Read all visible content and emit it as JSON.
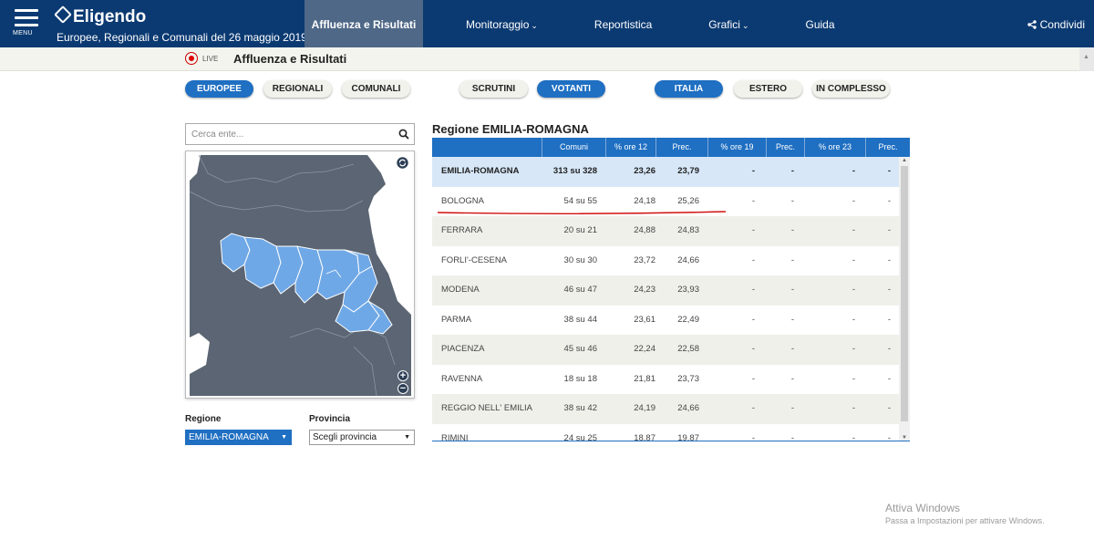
{
  "header": {
    "menu_label": "MENU",
    "logo": "Eligendo",
    "subtitle": "Europee, Regionali e Comunali del 26 maggio 2019",
    "nav": [
      {
        "label": "Affluenza e Risultati",
        "chevron": ""
      },
      {
        "label": "Monitoraggio",
        "chevron": "⌄"
      },
      {
        "label": "Reportistica",
        "chevron": ""
      },
      {
        "label": "Grafici",
        "chevron": "⌄"
      },
      {
        "label": "Guida",
        "chevron": ""
      }
    ],
    "share_label": "Condividi",
    "colors": {
      "bar": "#0b3a72",
      "active": "#4f6887"
    }
  },
  "live": {
    "badge": "LIVE",
    "title": "Affluenza e Risultati"
  },
  "filters": {
    "election": [
      "EUROPEE",
      "REGIONALI",
      "COMUNALI"
    ],
    "mode": [
      "SCRUTINI",
      "VOTANTI"
    ],
    "scope": [
      "ITALIA",
      "ESTERO",
      "IN COMPLESSO"
    ],
    "accent": "#1f6fc2"
  },
  "search": {
    "placeholder": "Cerca ente..."
  },
  "selectors": {
    "regione_label": "Regione",
    "regione_value": "EMILIA-ROMAGNA",
    "provincia_label": "Provincia",
    "provincia_value": "Scegli provincia"
  },
  "table": {
    "title": "Regione EMILIA-ROMAGNA",
    "headers": [
      "",
      "Comuni",
      "% ore 12",
      "Prec.",
      "% ore 19",
      "Prec.",
      "% ore 23",
      "Prec."
    ],
    "rows": [
      [
        "EMILIA-ROMAGNA",
        "313 su 328",
        "23,26",
        "23,79",
        "-",
        "-",
        "-",
        "-"
      ],
      [
        "BOLOGNA",
        "54 su 55",
        "24,18",
        "25,26",
        "-",
        "-",
        "-",
        "-"
      ],
      [
        "FERRARA",
        "20 su 21",
        "24,88",
        "24,83",
        "-",
        "-",
        "-",
        "-"
      ],
      [
        "FORLI'-CESENA",
        "30 su 30",
        "23,72",
        "24,66",
        "-",
        "-",
        "-",
        "-"
      ],
      [
        "MODENA",
        "46 su 47",
        "24,23",
        "23,93",
        "-",
        "-",
        "-",
        "-"
      ],
      [
        "PARMA",
        "38 su 44",
        "23,61",
        "22,49",
        "-",
        "-",
        "-",
        "-"
      ],
      [
        "PIACENZA",
        "45 su 46",
        "22,24",
        "22,58",
        "-",
        "-",
        "-",
        "-"
      ],
      [
        "RAVENNA",
        "18 su 18",
        "21,81",
        "23,73",
        "-",
        "-",
        "-",
        "-"
      ],
      [
        "REGGIO NELL' EMILIA",
        "38 su 42",
        "24,19",
        "24,66",
        "-",
        "-",
        "-",
        "-"
      ],
      [
        "RIMINI",
        "24 su 25",
        "18,87",
        "19,87",
        "-",
        "-",
        "-",
        "-"
      ]
    ]
  },
  "watermark": {
    "title": "Attiva Windows",
    "subtitle": "Passa a Impostazioni per attivare Windows."
  }
}
